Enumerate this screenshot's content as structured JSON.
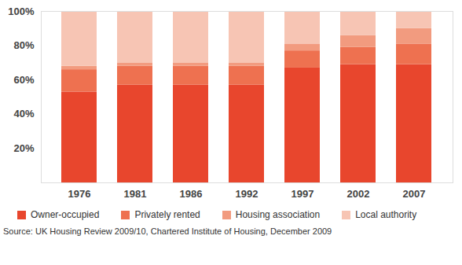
{
  "chart_data": {
    "type": "bar",
    "stacked": true,
    "categories": [
      "1976",
      "1981",
      "1986",
      "1992",
      "1997",
      "2002",
      "2007"
    ],
    "series": [
      {
        "name": "Owner-occupied",
        "color": "#e8462d",
        "values": [
          53,
          57,
          57,
          57,
          67,
          69,
          69
        ]
      },
      {
        "name": "Privately rented",
        "color": "#ee7150",
        "values": [
          13,
          11,
          11,
          11,
          10,
          10,
          12
        ]
      },
      {
        "name": "Housing association",
        "color": "#f29b7f",
        "values": [
          2,
          2,
          2,
          2,
          4,
          7,
          9
        ]
      },
      {
        "name": "Local authority",
        "color": "#f7c5b4",
        "values": [
          32,
          30,
          30,
          30,
          19,
          14,
          10
        ]
      }
    ],
    "ylim": [
      0,
      100
    ],
    "yticks": [
      {
        "value": 20,
        "label": "20%"
      },
      {
        "value": 40,
        "label": "40%"
      },
      {
        "value": 60,
        "label": "60%"
      },
      {
        "value": 80,
        "label": "80%"
      },
      {
        "value": 100,
        "label": "100%"
      }
    ],
    "grid": false,
    "legend": "bottom",
    "source": "Source: UK Housing Review 2009/10, Chartered Institute of Housing, December 2009"
  }
}
